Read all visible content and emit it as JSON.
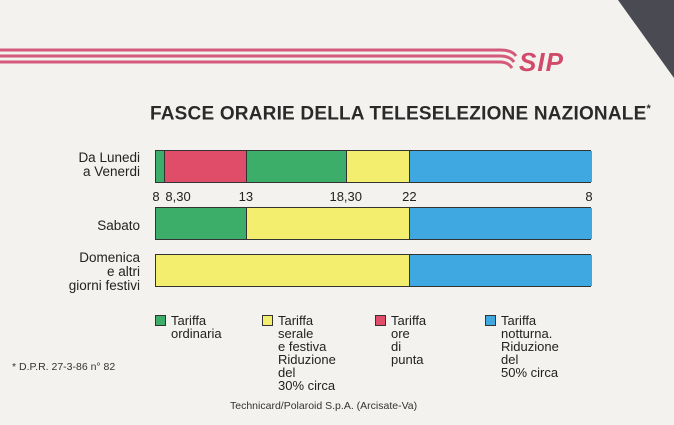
{
  "brand": {
    "logo_text": "SIP",
    "stripe_color": "#d45a7a"
  },
  "title": "FASCE ORARIE DELLA TELESELEZIONE NAZIONALE",
  "title_mark": "*",
  "colors": {
    "ordinaria": "#3cae6a",
    "serale": "#f3ee6e",
    "punta": "#e04d68",
    "notturna": "#3fa8e0"
  },
  "rows": [
    {
      "label_lines": [
        "Da Lunedi",
        "a Venerdi"
      ]
    },
    {
      "label_lines": [
        "Sabato"
      ]
    },
    {
      "label_lines": [
        "Domenica",
        "e altri",
        "giorni festivi"
      ]
    }
  ],
  "ticks": [
    "8",
    "8,30",
    "13",
    "18,30",
    "22",
    "8"
  ],
  "chart_data": {
    "type": "bar",
    "x_unit": "hour of day (08:00 to 08:00 next day)",
    "series": [
      {
        "row": "Da Lunedi a Venerdi",
        "segments": [
          {
            "from": 8,
            "to": 8.5,
            "tariff": "ordinaria"
          },
          {
            "from": 8.5,
            "to": 13,
            "tariff": "punta"
          },
          {
            "from": 13,
            "to": 18.5,
            "tariff": "ordinaria"
          },
          {
            "from": 18.5,
            "to": 22,
            "tariff": "serale"
          },
          {
            "from": 22,
            "to": 32,
            "tariff": "notturna"
          }
        ]
      },
      {
        "row": "Sabato",
        "segments": [
          {
            "from": 8,
            "to": 13,
            "tariff": "ordinaria"
          },
          {
            "from": 13,
            "to": 22,
            "tariff": "serale"
          },
          {
            "from": 22,
            "to": 32,
            "tariff": "notturna"
          }
        ]
      },
      {
        "row": "Domenica e altri giorni festivi",
        "segments": [
          {
            "from": 8,
            "to": 22,
            "tariff": "serale"
          },
          {
            "from": 22,
            "to": 32,
            "tariff": "notturna"
          }
        ]
      }
    ],
    "xlim": [
      8,
      32
    ],
    "tick_values": [
      8,
      8.5,
      13,
      18.5,
      22,
      32
    ]
  },
  "legend": [
    {
      "key": "ordinaria",
      "text": "Tariffa\nordinaria"
    },
    {
      "key": "serale",
      "text": "Tariffa serale\ne festiva\nRiduzione del\n30% circa"
    },
    {
      "key": "punta",
      "text": "Tariffa ore\ndi punta"
    },
    {
      "key": "notturna",
      "text": "Tariffa\nnotturna.\nRiduzione del\n50% circa"
    }
  ],
  "footnote": "* D.P.R. 27-3-86 n° 82",
  "credits": "Technicard/Polaroid S.p.A. (Arcisate-Va)"
}
